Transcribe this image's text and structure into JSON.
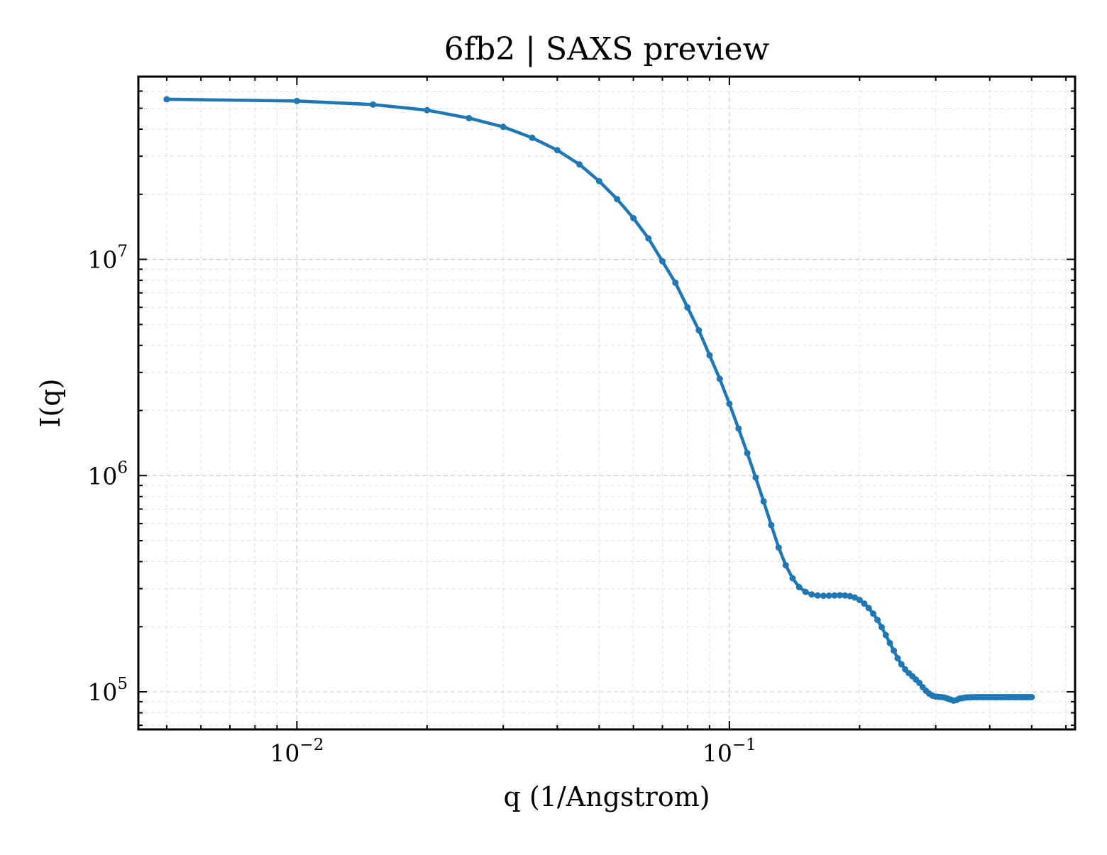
{
  "chart_data": {
    "type": "line",
    "title": "6fb2 | SAXS preview",
    "xlabel": "q (1/Angstrom)",
    "ylabel": "I(q)",
    "xscale": "log",
    "yscale": "log",
    "xlim": [
      0.0043,
      0.63
    ],
    "ylim": [
      67000,
      70000000
    ],
    "grid": true,
    "legend": "none",
    "x_ticks": [
      {
        "value": 0.01,
        "base": "10",
        "exp": "−2"
      },
      {
        "value": 0.1,
        "base": "10",
        "exp": "−1"
      }
    ],
    "y_ticks": [
      {
        "value": 100000,
        "base": "10",
        "exp": "5"
      },
      {
        "value": 1000000,
        "base": "10",
        "exp": "6"
      },
      {
        "value": 10000000,
        "base": "10",
        "exp": "7"
      }
    ],
    "series": [
      {
        "color": "#1f77b4",
        "marker": "circle",
        "x": [
          0.005,
          0.01,
          0.015,
          0.02,
          0.025,
          0.03,
          0.035,
          0.04,
          0.045,
          0.05,
          0.055,
          0.06,
          0.065,
          0.07,
          0.075,
          0.08,
          0.085,
          0.09,
          0.095,
          0.1,
          0.105,
          0.11,
          0.115,
          0.12,
          0.125,
          0.13,
          0.135,
          0.14,
          0.145,
          0.15,
          0.155,
          0.16,
          0.165,
          0.17,
          0.175,
          0.18,
          0.185,
          0.19,
          0.195,
          0.2,
          0.205,
          0.21,
          0.215,
          0.22,
          0.225,
          0.23,
          0.235,
          0.24,
          0.245,
          0.25,
          0.255,
          0.26,
          0.265,
          0.27,
          0.275,
          0.28,
          0.285,
          0.29,
          0.295,
          0.3,
          0.305,
          0.31,
          0.315,
          0.32,
          0.325,
          0.33,
          0.335,
          0.34,
          0.345,
          0.35,
          0.355,
          0.36,
          0.365,
          0.37,
          0.375,
          0.38,
          0.385,
          0.39,
          0.395,
          0.4,
          0.405,
          0.41,
          0.415,
          0.42,
          0.425,
          0.43,
          0.435,
          0.44,
          0.445,
          0.45,
          0.455,
          0.46,
          0.465,
          0.47,
          0.475,
          0.48,
          0.485,
          0.49,
          0.495,
          0.5
        ],
        "y": [
          55000000,
          54000000,
          52000000,
          49000000,
          45000000,
          41000000,
          36500000,
          32000000,
          27500000,
          23000000,
          19000000,
          15500000,
          12500000,
          9800000,
          7800000,
          6000000,
          4700000,
          3600000,
          2800000,
          2150000,
          1650000,
          1270000,
          980000,
          760000,
          590000,
          465000,
          385000,
          335000,
          305000,
          290000,
          282000,
          279000,
          278000,
          278500,
          279000,
          279500,
          279000,
          277000,
          273000,
          266000,
          256000,
          244000,
          230000,
          215000,
          199000,
          183000,
          168000,
          155000,
          143000,
          134000,
          127000,
          122000,
          118000,
          114000,
          110000,
          105000,
          101000,
          98000,
          96000,
          95000,
          94800,
          94500,
          94000,
          93000,
          92000,
          91000,
          91500,
          93000,
          93500,
          94000,
          94200,
          94300,
          94400,
          94500,
          94500,
          94500,
          94500,
          94500,
          94500,
          94500,
          94500,
          94500,
          94500,
          94500,
          94500,
          94500,
          94500,
          94500,
          94500,
          94500,
          94500,
          94500,
          94500,
          94500,
          94500,
          94500,
          94500,
          94500,
          94500,
          94500
        ]
      }
    ]
  }
}
